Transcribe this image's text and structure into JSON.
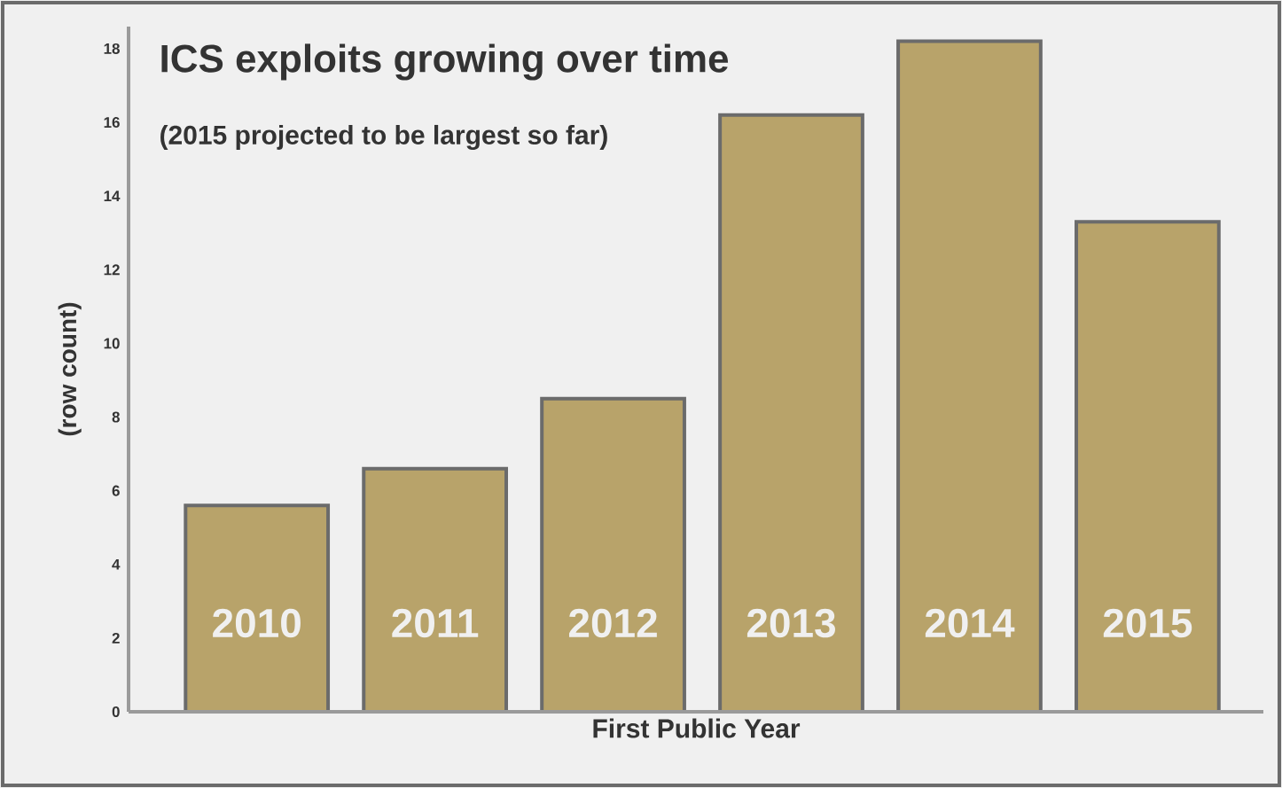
{
  "chart_data": {
    "type": "bar",
    "title": "ICS exploits growing over time",
    "subtitle": "(2015 projected to be largest so far)",
    "xlabel": "First Public Year",
    "ylabel": "(row count)",
    "categories": [
      "2010",
      "2011",
      "2012",
      "2013",
      "2014",
      "2015"
    ],
    "values": [
      5.6,
      6.6,
      8.5,
      16.2,
      18.2,
      13.3
    ],
    "color": "#b8a36a",
    "ylim": [
      0,
      18.6
    ],
    "yticks": [
      0,
      2,
      4,
      6,
      8,
      10,
      12,
      14,
      16,
      18
    ],
    "grid": false
  }
}
